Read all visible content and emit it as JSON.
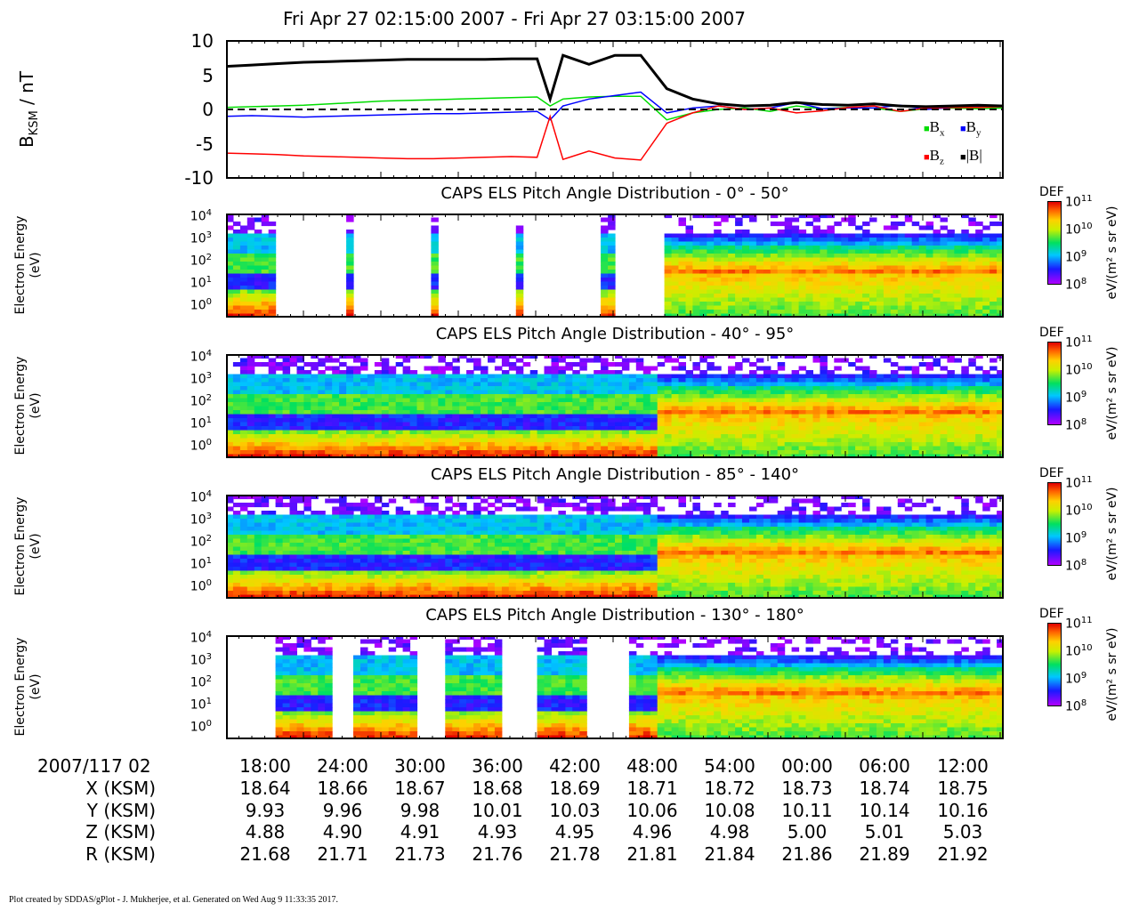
{
  "title": "Fri Apr 27 02:15:00 2007 - Fri Apr 27 03:15:00 2007",
  "footer": "Plot created by SDDAS/gPlot - J. Mukherjee, et al.  Generated on Wed Aug 9 11:33:35 2017.",
  "colors": {
    "Bx": "#00dd00",
    "By": "#0000ff",
    "Bz": "#ff0000",
    "Bmag": "#000000"
  },
  "chart_data": [
    {
      "type": "line",
      "title": "",
      "ylabel_main": "B",
      "ylabel_sub": "KSM",
      "ylabel_unit": " / nT",
      "ylim": [
        -10,
        10
      ],
      "yticks": [
        "10",
        "5",
        "0",
        "-5",
        "-10"
      ],
      "zero_line": "dashed",
      "x_minutes": [
        0,
        2,
        4,
        6,
        8,
        10,
        12,
        14,
        16,
        18,
        20,
        22,
        24,
        25,
        26,
        28,
        30,
        32,
        34,
        36,
        38,
        40,
        42,
        44,
        46,
        48,
        50,
        52,
        54,
        56,
        58,
        60
      ],
      "series": [
        {
          "name": "Bx",
          "key": "Bx",
          "values": [
            0.3,
            0.4,
            0.5,
            0.6,
            0.8,
            1.0,
            1.2,
            1.3,
            1.4,
            1.5,
            1.6,
            1.7,
            1.8,
            0.5,
            1.5,
            1.8,
            1.9,
            1.9,
            -1.5,
            -0.5,
            0.0,
            0.2,
            -0.3,
            0.5,
            0.1,
            0.3,
            0.2,
            -0.3,
            0.1,
            0.2,
            0.1,
            0.2
          ]
        },
        {
          "name": "By",
          "key": "By",
          "values": [
            -1.0,
            -0.9,
            -1.0,
            -1.1,
            -1.0,
            -0.9,
            -0.8,
            -0.7,
            -0.6,
            -0.6,
            -0.5,
            -0.4,
            -0.3,
            -1.5,
            0.5,
            1.5,
            2.0,
            2.5,
            -0.5,
            0.2,
            0.5,
            0.0,
            0.2,
            1.0,
            0.1,
            0.2,
            0.2,
            0.6,
            0.0,
            0.3,
            0.4,
            0.5
          ]
        },
        {
          "name": "Bz",
          "key": "Bz",
          "values": [
            -6.3,
            -6.4,
            -6.5,
            -6.7,
            -6.8,
            -6.9,
            -7.0,
            -7.1,
            -7.1,
            -7.0,
            -6.9,
            -6.8,
            -6.9,
            -1.0,
            -7.2,
            -6.0,
            -7.0,
            -7.3,
            -2.0,
            -0.5,
            0.5,
            0.0,
            0.2,
            -0.5,
            -0.2,
            0.3,
            0.5,
            -0.3,
            0.2,
            0.3,
            0.3,
            0.4
          ]
        },
        {
          "name": "|B|",
          "key": "Bmag",
          "values": [
            6.2,
            6.4,
            6.6,
            6.8,
            6.9,
            7.0,
            7.1,
            7.2,
            7.2,
            7.2,
            7.2,
            7.3,
            7.3,
            1.5,
            7.8,
            6.5,
            7.8,
            7.8,
            3.0,
            1.5,
            0.8,
            0.5,
            0.6,
            1.0,
            0.7,
            0.6,
            0.8,
            0.5,
            0.4,
            0.5,
            0.6,
            0.5
          ]
        }
      ],
      "legend": [
        {
          "sym": "■",
          "main": "B",
          "sub": "x",
          "key": "Bx"
        },
        {
          "sym": "■",
          "main": "B",
          "sub": "y",
          "key": "By"
        },
        {
          "sym": "■",
          "main": "B",
          "sub": "z",
          "key": "Bz"
        },
        {
          "sym": "■",
          "main": "|B|",
          "sub": "",
          "key": "Bmag"
        }
      ]
    },
    {
      "type": "heatmap",
      "title": "CAPS ELS Pitch Angle Distribution - 0° - 50°",
      "ylabel": [
        "Electron Energy",
        "(eV)"
      ],
      "yscale": "log",
      "ylim": [
        1,
        20000
      ],
      "yticks": [
        {
          "b": "10",
          "e": "4"
        },
        {
          "b": "10",
          "e": "3"
        },
        {
          "b": "10",
          "e": "2"
        },
        {
          "b": "10",
          "e": "1"
        },
        {
          "b": "10",
          "e": "0"
        }
      ],
      "colorbar": {
        "label": "DEF",
        "unit": "eV/(m² s sr eV)",
        "scale": "log",
        "range": [
          100000000.0,
          100000000000.0
        ],
        "ticks": [
          {
            "b": "10",
            "e": "11"
          },
          {
            "b": "10",
            "e": "10"
          },
          {
            "b": "10",
            "e": "9"
          },
          {
            "b": "10",
            "e": "8"
          }
        ]
      }
    },
    {
      "type": "heatmap",
      "title": "CAPS ELS Pitch Angle Distribution - 40° - 95°",
      "ylabel": [
        "Electron Energy",
        "(eV)"
      ],
      "yscale": "log",
      "ylim": [
        1,
        20000
      ],
      "yticks": [
        {
          "b": "10",
          "e": "4"
        },
        {
          "b": "10",
          "e": "3"
        },
        {
          "b": "10",
          "e": "2"
        },
        {
          "b": "10",
          "e": "1"
        },
        {
          "b": "10",
          "e": "0"
        }
      ],
      "colorbar": {
        "label": "DEF",
        "unit": "eV/(m² s sr eV)",
        "scale": "log",
        "range": [
          100000000.0,
          100000000000.0
        ],
        "ticks": [
          {
            "b": "10",
            "e": "11"
          },
          {
            "b": "10",
            "e": "10"
          },
          {
            "b": "10",
            "e": "9"
          },
          {
            "b": "10",
            "e": "8"
          }
        ]
      }
    },
    {
      "type": "heatmap",
      "title": "CAPS ELS Pitch Angle Distribution - 85° - 140°",
      "ylabel": [
        "Electron Energy",
        "(eV)"
      ],
      "yscale": "log",
      "ylim": [
        1,
        20000
      ],
      "yticks": [
        {
          "b": "10",
          "e": "4"
        },
        {
          "b": "10",
          "e": "3"
        },
        {
          "b": "10",
          "e": "2"
        },
        {
          "b": "10",
          "e": "1"
        },
        {
          "b": "10",
          "e": "0"
        }
      ],
      "colorbar": {
        "label": "DEF",
        "unit": "eV/(m² s sr eV)",
        "scale": "log",
        "range": [
          100000000.0,
          100000000000.0
        ],
        "ticks": [
          {
            "b": "10",
            "e": "11"
          },
          {
            "b": "10",
            "e": "10"
          },
          {
            "b": "10",
            "e": "9"
          },
          {
            "b": "10",
            "e": "8"
          }
        ]
      }
    },
    {
      "type": "heatmap",
      "title": "CAPS ELS Pitch Angle Distribution - 130° - 180°",
      "ylabel": [
        "Electron Energy",
        "(eV)"
      ],
      "yscale": "log",
      "ylim": [
        1,
        20000
      ],
      "yticks": [
        {
          "b": "10",
          "e": "4"
        },
        {
          "b": "10",
          "e": "3"
        },
        {
          "b": "10",
          "e": "2"
        },
        {
          "b": "10",
          "e": "1"
        },
        {
          "b": "10",
          "e": "0"
        }
      ],
      "colorbar": {
        "label": "DEF",
        "unit": "eV/(m² s sr eV)",
        "scale": "log",
        "range": [
          100000000.0,
          100000000000.0
        ],
        "ticks": [
          {
            "b": "10",
            "e": "11"
          },
          {
            "b": "10",
            "e": "10"
          },
          {
            "b": "10",
            "e": "9"
          },
          {
            "b": "10",
            "e": "8"
          }
        ]
      }
    }
  ],
  "ephemeris": {
    "date_label": "2007/117 02",
    "times": [
      "18:00",
      "24:00",
      "30:00",
      "36:00",
      "42:00",
      "48:00",
      "54:00",
      "00:00",
      "06:00",
      "12:00"
    ],
    "rows": [
      {
        "label": "X (KSM)",
        "values": [
          "18.64",
          "18.66",
          "18.67",
          "18.68",
          "18.69",
          "18.71",
          "18.72",
          "18.73",
          "18.74",
          "18.75"
        ]
      },
      {
        "label": "Y (KSM)",
        "values": [
          "9.93",
          "9.96",
          "9.98",
          "10.01",
          "10.03",
          "10.06",
          "10.08",
          "10.11",
          "10.14",
          "10.16"
        ]
      },
      {
        "label": "Z (KSM)",
        "values": [
          "4.88",
          "4.90",
          "4.91",
          "4.93",
          "4.95",
          "4.96",
          "4.98",
          "5.00",
          "5.01",
          "5.03"
        ]
      },
      {
        "label": "R (KSM)",
        "values": [
          "21.68",
          "21.71",
          "21.73",
          "21.76",
          "21.78",
          "21.81",
          "21.84",
          "21.86",
          "21.89",
          "21.92"
        ]
      }
    ]
  }
}
